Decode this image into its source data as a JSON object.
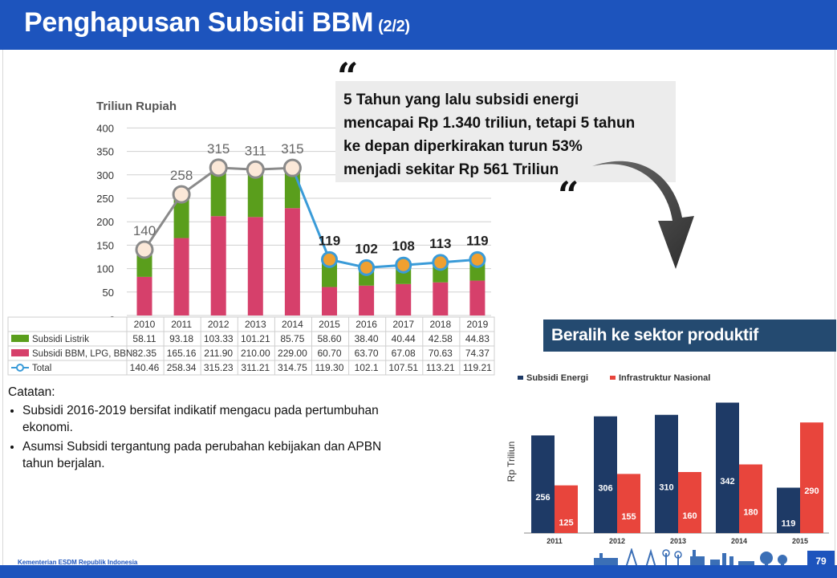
{
  "slide": {
    "title": "Penghapusan Subsidi BBM",
    "title_suffix": "(2/2)",
    "page_number": "79",
    "footer_org": "Kementerian ESDM Republik Indonesia"
  },
  "quote": {
    "open_mark": "“",
    "close_mark": "“",
    "lines": [
      "5 Tahun yang lalu subsidi energi",
      "mencapai Rp 1.340 triliun, tetapi 5 tahun",
      "ke depan diperkirakan turun 53%",
      "menjadi sekitar Rp 561 Triliun"
    ]
  },
  "notes": {
    "heading": "Catatan:",
    "items": [
      "Subsidi 2016-2019 bersifat indikatif mengacu pada pertumbuhan ekonomi.",
      "Asumsi Subsidi tergantung pada perubahan kebijakan dan APBN tahun berjalan."
    ]
  },
  "banner": {
    "text": "Beralih ke sektor produktif"
  },
  "colors": {
    "header_blue": "#1d54bd",
    "green": "#5a9e1c",
    "pink": "#d6406b",
    "line_gray": "#8a8a8a",
    "line_blue": "#3a9bd8",
    "orange": "#f0a030",
    "navy": "#1e3a66",
    "red": "#e8453c"
  },
  "chart_data": [
    {
      "type": "bar",
      "stacked": true,
      "unit_label": "Triliun Rupiah",
      "categories": [
        "2010",
        "2011",
        "2012",
        "2013",
        "2014",
        "2015",
        "2016",
        "2017",
        "2018",
        "2019"
      ],
      "ylim": [
        0,
        400
      ],
      "yticks": [
        "400",
        "350",
        "300",
        "250",
        "200",
        "150",
        "100",
        "50",
        "-"
      ],
      "series": [
        {
          "name": "Subsidi Listrik",
          "values": [
            58.11,
            93.18,
            103.33,
            101.21,
            85.75,
            58.6,
            38.4,
            40.44,
            42.58,
            44.83
          ],
          "table_values": [
            "58.11",
            "93.18",
            "103.33",
            "101.21",
            "85.75",
            "58.60",
            "38.40",
            "40.44",
            "42.58",
            "44.83"
          ]
        },
        {
          "name": "Subsidi BBM, LPG, BBN",
          "values": [
            82.35,
            165.16,
            211.9,
            210.0,
            229.0,
            60.7,
            63.7,
            67.08,
            70.63,
            74.37
          ],
          "table_values": [
            "82.35",
            "165.16",
            "211.90",
            "210.00",
            "229.00",
            "60.70",
            "63.70",
            "67.08",
            "70.63",
            "74.37"
          ]
        },
        {
          "name": "Total",
          "values": [
            140.46,
            258.34,
            315.23,
            311.21,
            314.75,
            119.3,
            102.1,
            107.51,
            113.21,
            119.21
          ],
          "table_values": [
            "140.46",
            "258.34",
            "315.23",
            "311.21",
            "314.75",
            "119.30",
            "102.1",
            "107.51",
            "113.21",
            "119.21"
          ],
          "point_labels": [
            "140",
            "258",
            "315",
            "311",
            "315",
            "119",
            "102",
            "108",
            "113",
            "119"
          ]
        }
      ],
      "grid": true
    },
    {
      "type": "bar",
      "ylabel": "Rp Triliun",
      "categories": [
        "2011",
        "2012",
        "2013",
        "2014",
        "2015"
      ],
      "legend": "top",
      "series": [
        {
          "name": "Subsidi Energi",
          "values": [
            256,
            306,
            310,
            342,
            119
          ]
        },
        {
          "name": "Infrastruktur Nasional",
          "values": [
            125,
            155,
            160,
            180,
            290
          ]
        }
      ],
      "ylim": [
        0,
        360
      ],
      "grid": false
    }
  ]
}
